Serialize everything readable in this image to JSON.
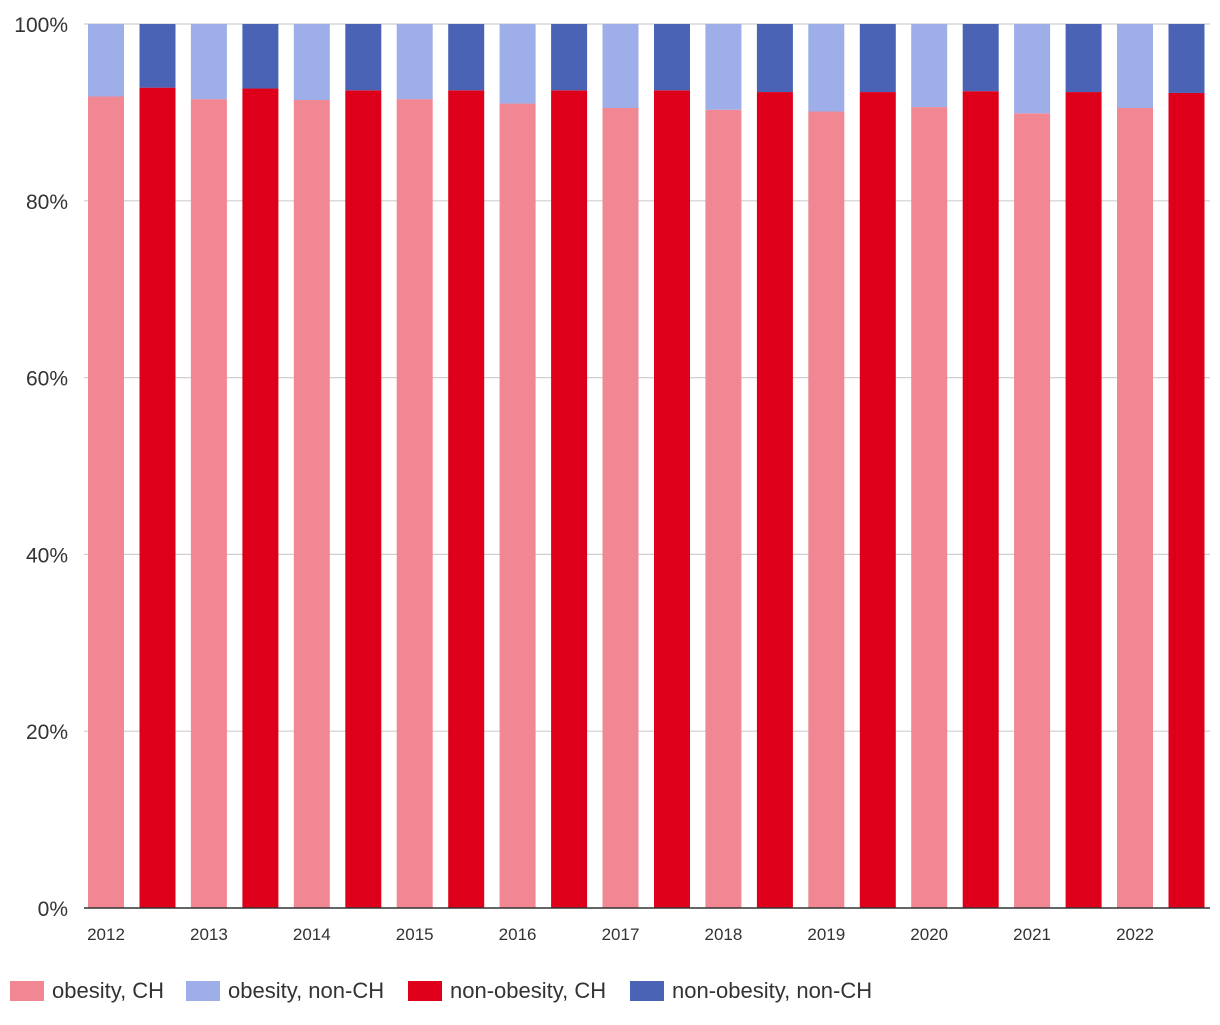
{
  "chart_data": {
    "type": "bar",
    "stacked": true,
    "percent": true,
    "title": "",
    "xlabel": "",
    "ylabel": "",
    "ylim": [
      0,
      100
    ],
    "y_ticks": [
      "0%",
      "20%",
      "40%",
      "60%",
      "80%",
      "100%"
    ],
    "y_tick_values": [
      0,
      20,
      40,
      60,
      80,
      100
    ],
    "x_tick_labels": [
      "2012",
      "2013",
      "2014",
      "2015",
      "2016",
      "2017",
      "2018",
      "2019",
      "2020",
      "2021",
      "2022"
    ],
    "groups": [
      {
        "year": "2012",
        "obesity": {
          "ch": 91.8,
          "non_ch": 8.2
        },
        "non_obesity": {
          "ch": 92.8,
          "non_ch": 7.2
        }
      },
      {
        "year": "2013",
        "obesity": {
          "ch": 91.5,
          "non_ch": 8.5
        },
        "non_obesity": {
          "ch": 92.7,
          "non_ch": 7.3
        }
      },
      {
        "year": "2014",
        "obesity": {
          "ch": 91.4,
          "non_ch": 8.6
        },
        "non_obesity": {
          "ch": 92.5,
          "non_ch": 7.5
        }
      },
      {
        "year": "2015",
        "obesity": {
          "ch": 91.5,
          "non_ch": 8.5
        },
        "non_obesity": {
          "ch": 92.5,
          "non_ch": 7.5
        }
      },
      {
        "year": "2016",
        "obesity": {
          "ch": 91.0,
          "non_ch": 9.0
        },
        "non_obesity": {
          "ch": 92.5,
          "non_ch": 7.5
        }
      },
      {
        "year": "2017",
        "obesity": {
          "ch": 90.5,
          "non_ch": 9.5
        },
        "non_obesity": {
          "ch": 92.5,
          "non_ch": 7.5
        }
      },
      {
        "year": "2018",
        "obesity": {
          "ch": 90.3,
          "non_ch": 9.7
        },
        "non_obesity": {
          "ch": 92.3,
          "non_ch": 7.7
        }
      },
      {
        "year": "2019",
        "obesity": {
          "ch": 90.1,
          "non_ch": 9.9
        },
        "non_obesity": {
          "ch": 92.3,
          "non_ch": 7.7
        }
      },
      {
        "year": "2020",
        "obesity": {
          "ch": 90.6,
          "non_ch": 9.4
        },
        "non_obesity": {
          "ch": 92.4,
          "non_ch": 7.6
        }
      },
      {
        "year": "2021",
        "obesity": {
          "ch": 89.9,
          "non_ch": 10.1
        },
        "non_obesity": {
          "ch": 92.3,
          "non_ch": 7.7
        }
      },
      {
        "year": "2022",
        "obesity": {
          "ch": 90.5,
          "non_ch": 9.5
        },
        "non_obesity": {
          "ch": 92.2,
          "non_ch": 7.8
        }
      }
    ],
    "series": [
      {
        "key": "obesity_ch",
        "name": "obesity, CH",
        "color": "#f08792"
      },
      {
        "key": "obesity_non_ch",
        "name": "obesity, non-CH",
        "color": "#9daee8"
      },
      {
        "key": "non_obesity_ch",
        "name": "non-obesity, CH",
        "color": "#de001b"
      },
      {
        "key": "non_obesity_non_ch",
        "name": "non-obesity, non-CH",
        "color": "#4a63b5"
      }
    ],
    "grid": true,
    "legend_position": "bottom-left"
  },
  "colors": {
    "grid": "#cfcfcf",
    "axis": "#333333",
    "text": "#333333"
  }
}
